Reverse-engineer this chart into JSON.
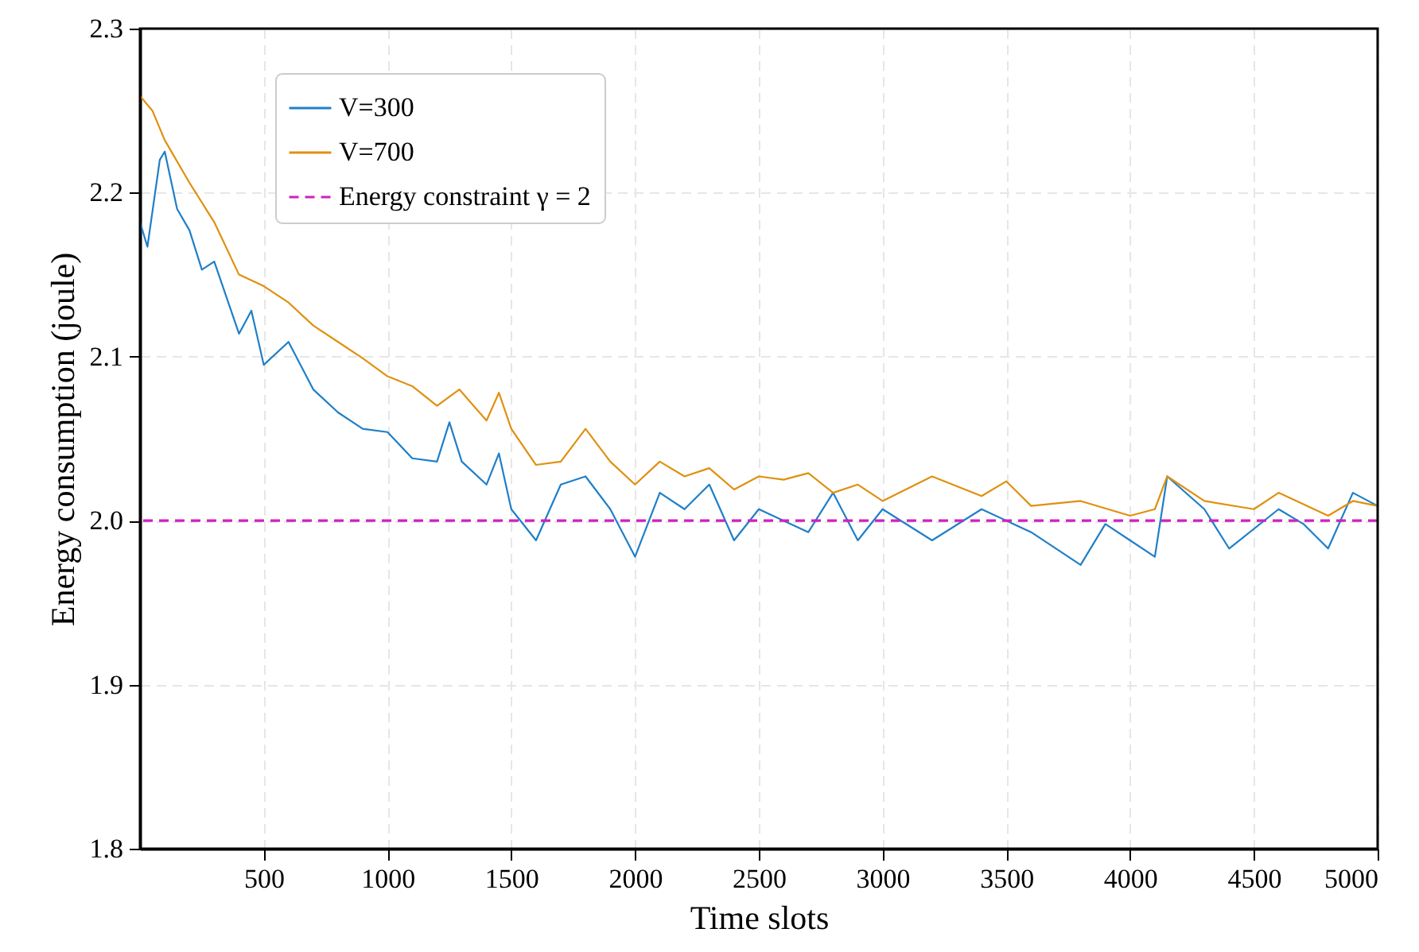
{
  "chart_data": {
    "type": "line",
    "xlabel": "Time slots",
    "ylabel": "Energy consumption (joule)",
    "xlim": [
      0,
      5000
    ],
    "xticks": [
      500,
      1000,
      1500,
      2000,
      2500,
      3000,
      3500,
      4000,
      4500,
      5000
    ],
    "ylim": [
      1.8,
      2.3
    ],
    "yticks": [
      {
        "value": 1.8,
        "label": "1.8"
      },
      {
        "value": 1.9,
        "label": "1.9"
      },
      {
        "value": 2,
        "label": "2.0"
      },
      {
        "value": 2.1,
        "label": "2.1"
      },
      {
        "value": 2.2,
        "label": "2.2"
      },
      {
        "value": 2.3,
        "label": "2.3"
      }
    ],
    "grid": true,
    "legend": "top left",
    "line_style": "solid",
    "marker": "none",
    "series": [
      {
        "name": "V=300",
        "color": "#1f7fc8",
        "x": [
          0,
          30,
          80,
          100,
          150,
          200,
          250,
          300,
          400,
          450,
          500,
          600,
          700,
          800,
          900,
          1000,
          1100,
          1200,
          1250,
          1300,
          1400,
          1450,
          1500,
          1600,
          1700,
          1800,
          1900,
          2000,
          2100,
          2200,
          2300,
          2400,
          2500,
          2700,
          2800,
          2900,
          3000,
          3200,
          3400,
          3600,
          3800,
          3900,
          4000,
          4100,
          4150,
          4300,
          4400,
          4600,
          4700,
          4800,
          4900,
          5000
        ],
        "values": [
          2.182,
          2.167,
          2.22,
          2.225,
          2.19,
          2.177,
          2.153,
          2.158,
          2.114,
          2.128,
          2.095,
          2.109,
          2.08,
          2.066,
          2.056,
          2.054,
          2.038,
          2.036,
          2.06,
          2.036,
          2.022,
          2.041,
          2.007,
          1.988,
          2.022,
          2.027,
          2.007,
          1.978,
          2.017,
          2.007,
          2.022,
          1.988,
          2.007,
          1.993,
          2.017,
          1.988,
          2.007,
          1.988,
          2.007,
          1.993,
          1.973,
          1.998,
          1.988,
          1.978,
          2.027,
          2.007,
          1.983,
          2.007,
          1.998,
          1.983,
          2.017,
          2.009
        ]
      },
      {
        "name": "V=700",
        "color": "#e0900f",
        "x": [
          0,
          50,
          100,
          200,
          300,
          400,
          500,
          600,
          700,
          800,
          900,
          1000,
          1100,
          1200,
          1290,
          1400,
          1450,
          1500,
          1600,
          1700,
          1800,
          1900,
          2000,
          2100,
          2200,
          2300,
          2400,
          2500,
          2600,
          2700,
          2800,
          2900,
          3000,
          3200,
          3400,
          3500,
          3600,
          3800,
          4000,
          4100,
          4150,
          4300,
          4500,
          4600,
          4800,
          4900,
          5000
        ],
        "values": [
          2.259,
          2.25,
          2.232,
          2.206,
          2.182,
          2.15,
          2.143,
          2.133,
          2.119,
          2.109,
          2.099,
          2.088,
          2.082,
          2.07,
          2.08,
          2.061,
          2.078,
          2.056,
          2.034,
          2.036,
          2.056,
          2.036,
          2.022,
          2.036,
          2.027,
          2.032,
          2.019,
          2.027,
          2.025,
          2.029,
          2.017,
          2.022,
          2.012,
          2.027,
          2.015,
          2.024,
          2.009,
          2.012,
          2.003,
          2.007,
          2.027,
          2.012,
          2.007,
          2.017,
          2.003,
          2.012,
          2.009
        ]
      }
    ],
    "ref_lines": [
      {
        "axis": "y",
        "value": 2,
        "label": "Energy constraint γ = 2",
        "color": "#d020c0",
        "line_style": "dashed"
      }
    ]
  }
}
